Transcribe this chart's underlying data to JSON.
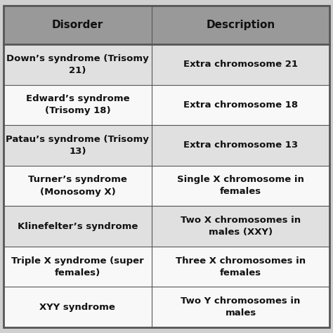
{
  "title_row": [
    "Disorder",
    "Description"
  ],
  "rows": [
    [
      "Down’s syndrome (Trisomy\n21)",
      "Extra chromosome 21"
    ],
    [
      "Edward’s syndrome\n(Trisomy 18)",
      "Extra chromosome 18"
    ],
    [
      "Patau’s syndrome (Trisomy\n13)",
      "Extra chromosome 13"
    ],
    [
      "Turner’s syndrome\n(Monosomy X)",
      "Single X chromosome in\nfemales"
    ],
    [
      "Klinefelter’s syndrome",
      "Two X chromosomes in\nmales (XXY)"
    ],
    [
      "Triple X syndrome (super\nfemales)",
      "Three X chromosomes in\nfemales"
    ],
    [
      "XYY syndrome",
      "Two Y chromosomes in\nmales"
    ]
  ],
  "header_bg": "#999999",
  "row_colors": [
    "#e0e0e0",
    "#f8f8f8",
    "#e0e0e0",
    "#f8f8f8",
    "#e0e0e0",
    "#f8f8f8",
    "#f8f8f8"
  ],
  "text_color": "#111111",
  "header_text_color": "#111111",
  "font_size": 9.5,
  "header_font_size": 11,
  "col_split": 0.455,
  "fig_bg": "#d0d0d0",
  "border_color": "#555555",
  "outer_border_color": "#555555"
}
